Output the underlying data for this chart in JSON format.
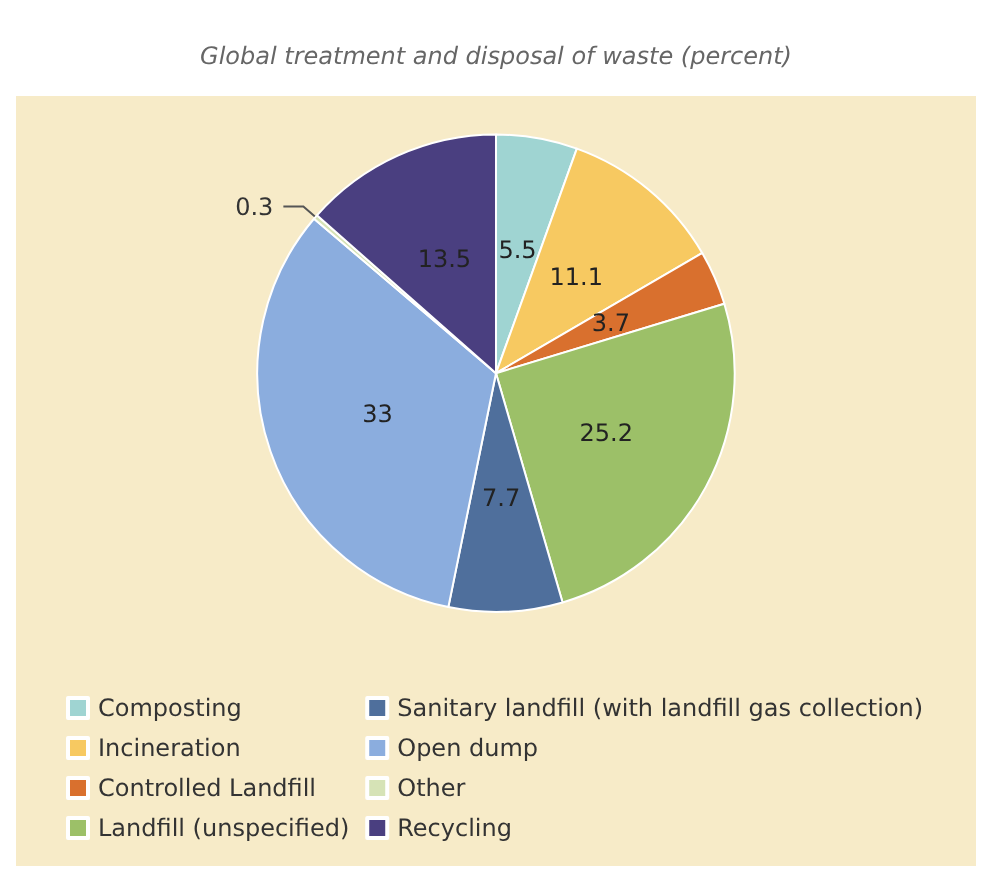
{
  "chart_data": {
    "type": "pie",
    "title": "Global treatment and disposal of waste (percent)",
    "categories": [
      "Composting",
      "Incineration",
      "Controlled Landfill",
      "Landfill (unspecified)",
      "Sanitary landfill (with landfill gas collection)",
      "Open dump",
      "Other",
      "Recycling"
    ],
    "values": [
      5.5,
      11.1,
      3.7,
      25.2,
      7.7,
      33,
      0.3,
      13.5
    ],
    "colors": [
      "#9fd4d2",
      "#f7c961",
      "#d9702e",
      "#9cc068",
      "#4f6f9c",
      "#8badde",
      "#d6e3b6",
      "#4a3f80"
    ],
    "data_labels": true,
    "legend": "bottom"
  }
}
